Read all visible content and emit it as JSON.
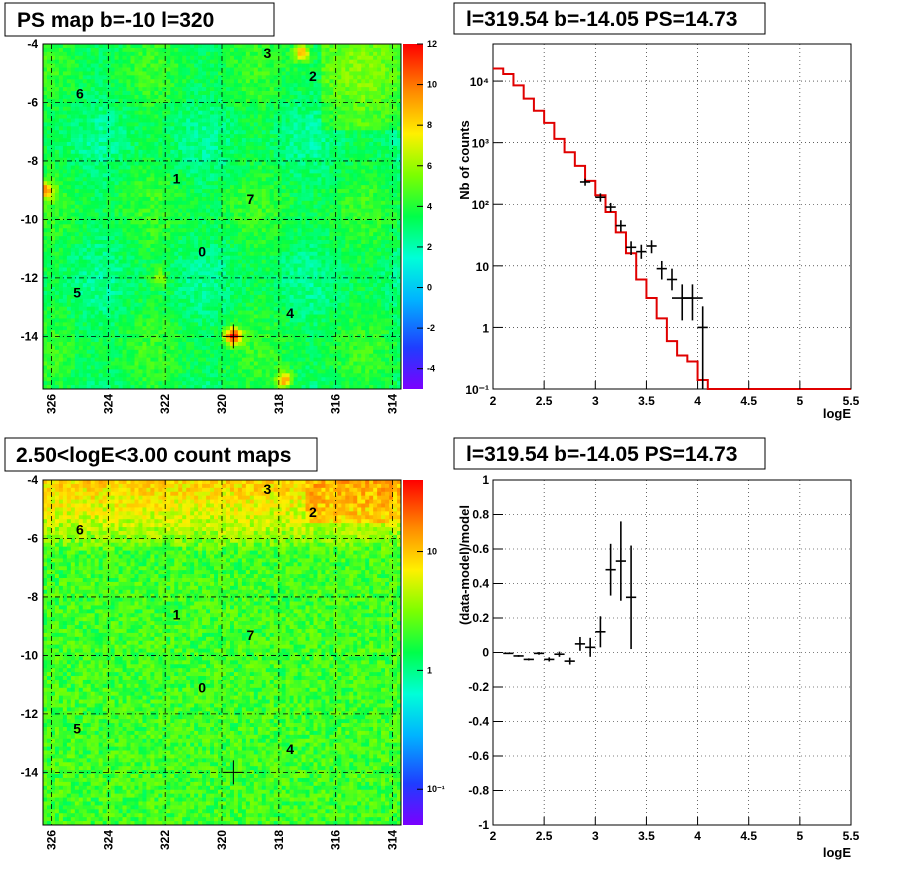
{
  "panels": {
    "ps_map": {
      "title": "PS map b=-10 l=320",
      "x_ticks": [
        "326",
        "324",
        "322",
        "320",
        "318",
        "316",
        "314"
      ],
      "y_ticks": [
        "-4",
        "-6",
        "-8",
        "-10",
        "-12",
        "-14"
      ],
      "colorbar_ticks": [
        "12",
        "10",
        "8",
        "6",
        "4",
        "2",
        "0",
        "-2",
        "-4"
      ],
      "source_labels": [
        {
          "id": "3",
          "l": 318.4,
          "b": -4.3
        },
        {
          "id": "2",
          "l": 316.8,
          "b": -5.1
        },
        {
          "id": "6",
          "l": 325.0,
          "b": -5.7
        },
        {
          "id": "1",
          "l": 321.6,
          "b": -8.6
        },
        {
          "id": "7",
          "l": 319.0,
          "b": -9.3
        },
        {
          "id": "0",
          "l": 320.7,
          "b": -11.1
        },
        {
          "id": "5",
          "l": 325.1,
          "b": -12.5
        },
        {
          "id": "4",
          "l": 317.6,
          "b": -13.2
        }
      ]
    },
    "count_map": {
      "title": "2.50<logE<3.00 count maps",
      "x_ticks": [
        "326",
        "324",
        "322",
        "320",
        "318",
        "316",
        "314"
      ],
      "y_ticks": [
        "-4",
        "-6",
        "-8",
        "-10",
        "-12",
        "-14"
      ],
      "colorbar_ticks": [
        "10",
        "1",
        "10⁻¹"
      ],
      "source_labels": [
        {
          "id": "3",
          "l": 318.4,
          "b": -4.3
        },
        {
          "id": "2",
          "l": 316.8,
          "b": -5.1
        },
        {
          "id": "6",
          "l": 325.0,
          "b": -5.7
        },
        {
          "id": "1",
          "l": 321.6,
          "b": -8.6
        },
        {
          "id": "7",
          "l": 319.0,
          "b": -9.3
        },
        {
          "id": "0",
          "l": 320.7,
          "b": -11.1
        },
        {
          "id": "5",
          "l": 325.1,
          "b": -12.5
        },
        {
          "id": "4",
          "l": 317.6,
          "b": -13.2
        }
      ]
    },
    "spectrum": {
      "title": "l=319.54 b=-14.05 PS=14.73",
      "x_ticks": [
        "2",
        "2.5",
        "3",
        "3.5",
        "4",
        "4.5",
        "5",
        "5.5"
      ],
      "y_ticks": [
        "10⁴",
        "10³",
        "10²",
        "10",
        "1",
        "10⁻¹"
      ],
      "xlabel": "logE",
      "ylabel": "Nb of counts"
    },
    "residual": {
      "title": "l=319.54 b=-14.05 PS=14.73",
      "x_ticks": [
        "2",
        "2.5",
        "3",
        "3.5",
        "4",
        "4.5",
        "5",
        "5.5"
      ],
      "y_ticks": [
        "1",
        "0.8",
        "0.6",
        "0.4",
        "0.2",
        "0",
        "-0.2",
        "-0.4",
        "-0.6",
        "-0.8",
        "-1"
      ],
      "xlabel": "logE",
      "ylabel": "(data-model)/model"
    }
  },
  "chart_data": [
    {
      "type": "heatmap",
      "title": "PS map b=-10 l=320",
      "xlim": [
        326.3,
        313.7
      ],
      "ylim": [
        -15.8,
        -4.0
      ],
      "zlim": [
        -5,
        12
      ],
      "grid": true,
      "hotspots": [
        {
          "l": 319.6,
          "b": -14.0,
          "z": 12
        },
        {
          "l": 317.2,
          "b": -4.3,
          "z": 9
        },
        {
          "l": 326.2,
          "b": -9.0,
          "z": 9
        },
        {
          "l": 317.8,
          "b": -15.5,
          "z": 9
        },
        {
          "l": 322.2,
          "b": -12.0,
          "z": 6
        }
      ]
    },
    {
      "type": "heatmap",
      "title": "2.50<logE<3.00 count maps",
      "xlim": [
        326.3,
        313.7
      ],
      "ylim": [
        -15.8,
        -4.0
      ],
      "zscale": "log",
      "zlim": [
        0.05,
        40
      ],
      "grid": true
    },
    {
      "type": "line",
      "title": "l=319.54 b=-14.05 PS=14.73",
      "xlabel": "logE",
      "ylabel": "Nb of counts",
      "xlim": [
        2,
        5.5
      ],
      "ylim": [
        0.1,
        40000
      ],
      "yscale": "log",
      "grid": true,
      "model_bin_width": 0.1,
      "model_bin_starts": [
        2.0,
        2.1,
        2.2,
        2.3,
        2.4,
        2.5,
        2.6,
        2.7,
        2.8,
        2.9,
        3.0,
        3.1,
        3.2,
        3.3,
        3.4,
        3.5,
        3.6,
        3.7,
        3.8,
        3.9,
        4.0,
        4.1
      ],
      "model_values": [
        16000,
        13000,
        8500,
        5200,
        3300,
        2100,
        1150,
        700,
        420,
        240,
        140,
        75,
        35,
        16,
        6,
        3,
        1.4,
        0.6,
        0.35,
        0.28,
        0.14,
        0.1
      ],
      "data_points": [
        {
          "x": 2.9,
          "y": 230,
          "dx": 0.05,
          "ylo": 200,
          "yhi": 260
        },
        {
          "x": 3.05,
          "y": 130,
          "dx": 0.05,
          "ylo": 110,
          "yhi": 150
        },
        {
          "x": 3.15,
          "y": 90,
          "dx": 0.05,
          "ylo": 75,
          "yhi": 105
        },
        {
          "x": 3.25,
          "y": 45,
          "dx": 0.05,
          "ylo": 36,
          "yhi": 55
        },
        {
          "x": 3.35,
          "y": 20,
          "dx": 0.05,
          "ylo": 15,
          "yhi": 25
        },
        {
          "x": 3.45,
          "y": 17,
          "dx": 0.05,
          "ylo": 13,
          "yhi": 22
        },
        {
          "x": 3.55,
          "y": 21,
          "dx": 0.05,
          "ylo": 16,
          "yhi": 26
        },
        {
          "x": 3.65,
          "y": 9,
          "dx": 0.05,
          "ylo": 6,
          "yhi": 12
        },
        {
          "x": 3.75,
          "y": 6,
          "dx": 0.05,
          "ylo": 4,
          "yhi": 9
        },
        {
          "x": 3.85,
          "y": 3,
          "dx": 0.1,
          "ylo": 1.3,
          "yhi": 5
        },
        {
          "x": 3.95,
          "y": 3,
          "dx": 0.1,
          "ylo": 1.3,
          "yhi": 5
        },
        {
          "x": 4.05,
          "y": 1,
          "dx": 0.05,
          "ylo": 0.1,
          "yhi": 2.2
        }
      ]
    },
    {
      "type": "scatter",
      "title": "l=319.54 b=-14.05 PS=14.73",
      "xlabel": "logE",
      "ylabel": "(data-model)/model",
      "xlim": [
        2,
        5.5
      ],
      "ylim": [
        -1,
        1
      ],
      "grid": true,
      "data_points": [
        {
          "x": 2.15,
          "y": -0.005,
          "dx": 0.05,
          "dy": 0.004
        },
        {
          "x": 2.25,
          "y": -0.02,
          "dx": 0.05,
          "dy": 0.005
        },
        {
          "x": 2.35,
          "y": -0.04,
          "dx": 0.05,
          "dy": 0.006
        },
        {
          "x": 2.45,
          "y": -0.005,
          "dx": 0.05,
          "dy": 0.008
        },
        {
          "x": 2.55,
          "y": -0.04,
          "dx": 0.05,
          "dy": 0.012
        },
        {
          "x": 2.65,
          "y": -0.01,
          "dx": 0.05,
          "dy": 0.015
        },
        {
          "x": 2.75,
          "y": -0.05,
          "dx": 0.05,
          "dy": 0.02
        },
        {
          "x": 2.85,
          "y": 0.05,
          "dx": 0.05,
          "dy": 0.04
        },
        {
          "x": 2.95,
          "y": 0.03,
          "dx": 0.05,
          "dy": 0.055
        },
        {
          "x": 3.05,
          "y": 0.12,
          "dx": 0.05,
          "dy": 0.09
        },
        {
          "x": 3.15,
          "y": 0.48,
          "dx": 0.05,
          "dy": 0.15
        },
        {
          "x": 3.25,
          "y": 0.53,
          "dx": 0.05,
          "dy": 0.23
        },
        {
          "x": 3.35,
          "y": 0.32,
          "dx": 0.05,
          "dy": 0.3
        }
      ]
    }
  ]
}
